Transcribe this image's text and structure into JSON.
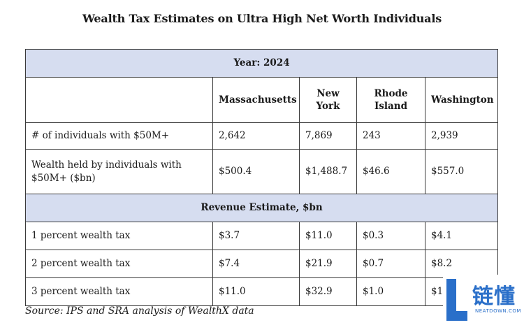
{
  "title": "Wealth Tax Estimates on Ultra High Net Worth Individuals",
  "year_band": "Year: 2024",
  "states": [
    "Massachusetts",
    "New York",
    "Rhode Island",
    "Washington"
  ],
  "population_rows": [
    {
      "label": "# of individuals with $50M+",
      "values": [
        "2,642",
        "7,869",
        "243",
        "2,939"
      ]
    },
    {
      "label": "Wealth held by individuals with $50M+ ($bn)",
      "values": [
        "$500.4",
        "$1,488.7",
        "$46.6",
        "$557.0"
      ]
    }
  ],
  "revenue_band": "Revenue Estimate, $bn",
  "revenue_rows": [
    {
      "label": "1 percent wealth tax",
      "values": [
        "$3.7",
        "$11.0",
        "$0.3",
        "$4.1"
      ]
    },
    {
      "label": "2 percent wealth tax",
      "values": [
        "$7.4",
        "$21.9",
        "$0.7",
        "$8.2"
      ]
    },
    {
      "label": "3 percent wealth tax",
      "values": [
        "$11.0",
        "$32.9",
        "$1.0",
        "$1"
      ]
    }
  ],
  "source": "Source: IPS and SRA analysis of WealthX data",
  "watermark": {
    "chinese_text": "链懂",
    "english_text": "NEATDOWN.COM",
    "color": "#2a6fc9"
  }
}
